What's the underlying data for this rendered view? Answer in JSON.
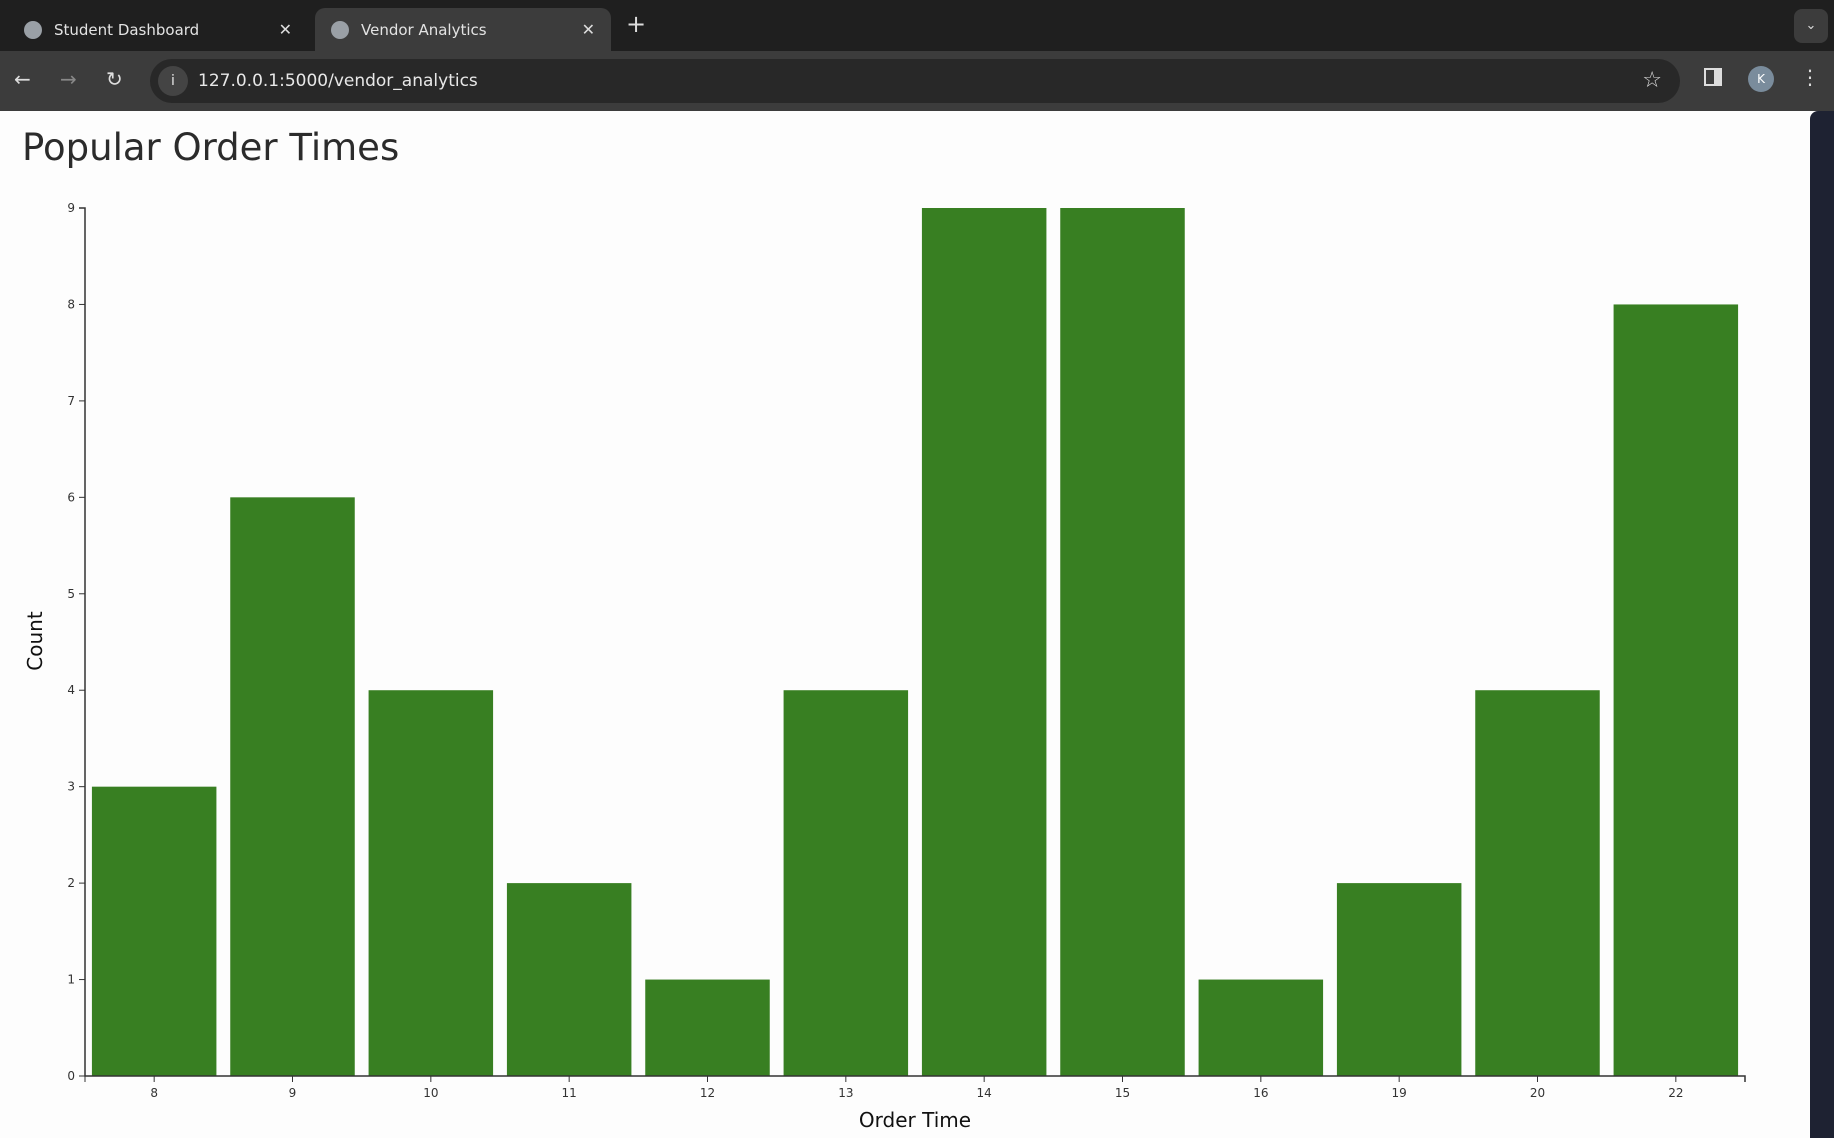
{
  "browser": {
    "tabs": [
      {
        "title": "Student Dashboard",
        "active": false
      },
      {
        "title": "Vendor Analytics",
        "active": true
      }
    ],
    "url": "127.0.0.1:5000/vendor_analytics",
    "profile_initial": "K"
  },
  "page": {
    "title": "Popular Order Times"
  },
  "chart_data": {
    "type": "bar",
    "title": "Popular Order Times",
    "xlabel": "Order Time",
    "ylabel": "Count",
    "categories": [
      "8",
      "9",
      "10",
      "11",
      "12",
      "13",
      "14",
      "15",
      "16",
      "19",
      "20",
      "22"
    ],
    "values": [
      3,
      6,
      4,
      2,
      1,
      4,
      9,
      9,
      1,
      2,
      4,
      8
    ],
    "ylim": [
      0,
      9
    ],
    "yticks": [
      0,
      1,
      2,
      3,
      4,
      5,
      6,
      7,
      8,
      9
    ],
    "grid": false,
    "color": "#387f22"
  }
}
